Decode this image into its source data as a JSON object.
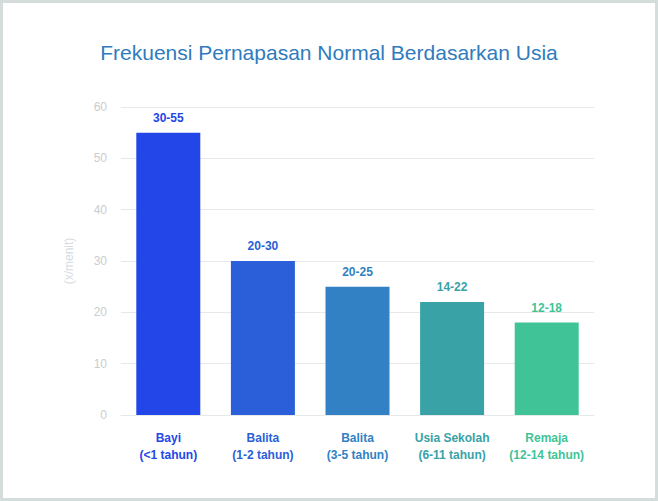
{
  "chart_data": {
    "type": "bar",
    "title": "Frekuensi Pernapasan Normal Berdasarkan Usia",
    "y_label": "(x/menit)",
    "categories": [
      "Bayi\n(<1 tahun)",
      "Balita\n(1-2 tahun)",
      "Balita\n(3-5 tahun)",
      "Usia Sekolah\n(6-11 tahun)",
      "Remaja\n(12-14 tahun)"
    ],
    "values": [
      55,
      30,
      25,
      22,
      18
    ],
    "value_labels": [
      "30-55",
      "20-30",
      "20-25",
      "14-22",
      "12-18"
    ],
    "colors": [
      "#2346e8",
      "#2b5fd9",
      "#3181c4",
      "#38a2a6",
      "#40c497"
    ],
    "ylim": [
      0,
      60
    ],
    "yticks": [
      0,
      10,
      20,
      30,
      40,
      50,
      60
    ],
    "grid": true,
    "data_labels": true
  }
}
